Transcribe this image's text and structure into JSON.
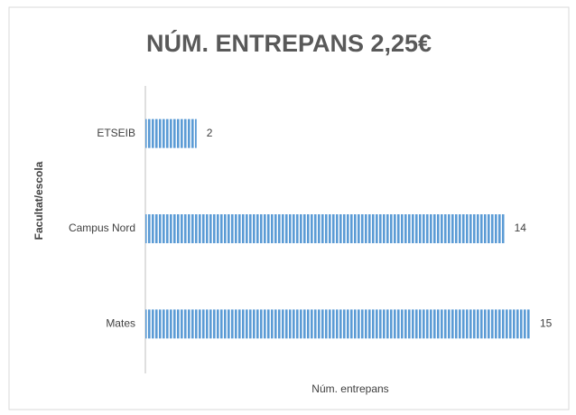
{
  "chart_data": {
    "type": "bar",
    "orientation": "horizontal",
    "title": "NÚM. ENTREPANS 2,25€",
    "x_label": "Núm. entrepans",
    "y_label": "Facultat/escola",
    "categories": [
      "ETSEIB",
      "Campus Nord",
      "Mates"
    ],
    "values": [
      2,
      14,
      15
    ],
    "color": "#5b9bd5",
    "xlim": [
      0,
      15
    ]
  }
}
